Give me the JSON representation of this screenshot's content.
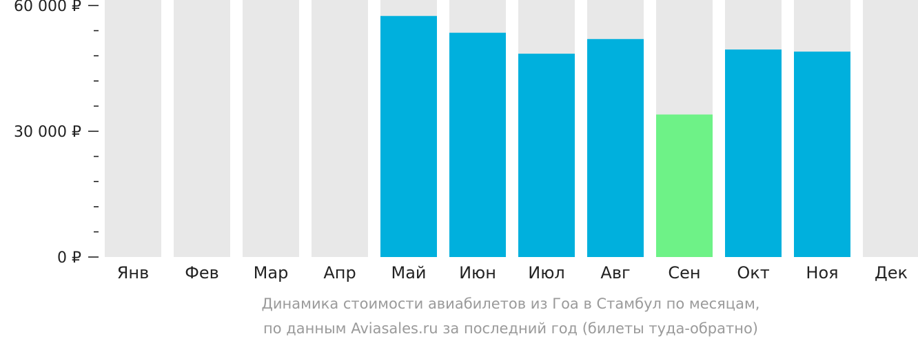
{
  "colors": {
    "background_bar": "#e8e8e8",
    "value_bar": "#00b0dd",
    "lowest_bar": "#6ef287",
    "axis": "#222222",
    "caption": "#9a9a9a"
  },
  "caption": {
    "line1": "Динамика стоимости авиабилетов из Гоа в Стамбул по месяцам,",
    "line2": "по данным Aviasales.ru за последний год (билеты туда-обратно)"
  },
  "chart_data": {
    "type": "bar",
    "categories": [
      "Янв",
      "Фев",
      "Мар",
      "Апр",
      "Май",
      "Июн",
      "Июл",
      "Авг",
      "Сен",
      "Окт",
      "Ноя",
      "Дек"
    ],
    "values": [
      null,
      null,
      null,
      null,
      57500,
      53500,
      48500,
      52000,
      34000,
      49500,
      49000,
      null
    ],
    "lowest_index": 8,
    "ylim": [
      0,
      62000
    ],
    "yticks": [
      0,
      30000,
      60000
    ],
    "ytick_labels": [
      "0 ₽",
      "30 000 ₽",
      "60 000 ₽"
    ],
    "minor_ytick_step": 6000,
    "title": "",
    "xlabel": "",
    "ylabel": "",
    "grid": false,
    "legend": "none"
  }
}
